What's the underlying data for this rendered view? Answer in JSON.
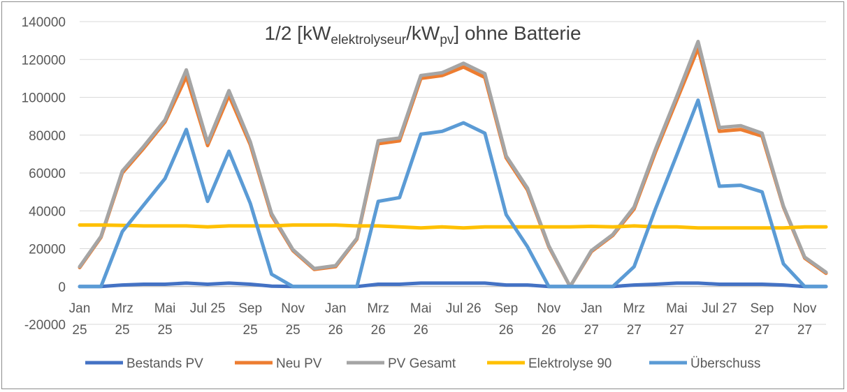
{
  "chart_data": {
    "type": "line",
    "title": {
      "prefix": "1/2 [kW",
      "sub1": "elektrolyseur",
      "mid": "/kW",
      "sub2": "pv",
      "suffix": "]  ohne Batterie"
    },
    "ylim": [
      -20000,
      140000
    ],
    "yticks": [
      -20000,
      0,
      20000,
      40000,
      60000,
      80000,
      100000,
      120000,
      140000
    ],
    "ytick_labels": [
      "-20000",
      "0",
      "20000",
      "40000",
      "60000",
      "80000",
      "100000",
      "120000",
      "140000"
    ],
    "grid": true,
    "legend_position": "bottom",
    "x": [
      "Jan 25",
      "Feb 25",
      "Mrz 25",
      "Apr 25",
      "Mai 25",
      "Jun 25",
      "Jul 25",
      "Aug 25",
      "Sep 25",
      "Okt 25",
      "Nov 25",
      "Dez 25",
      "Jan 26",
      "Feb 26",
      "Mrz 26",
      "Apr 26",
      "Mai 26",
      "Jun 26",
      "Jul 26",
      "Aug 26",
      "Sep 26",
      "Okt 26",
      "Nov 26",
      "Dez 26",
      "Jan 27",
      "Feb 27",
      "Mrz 27",
      "Apr 27",
      "Mai 27",
      "Jun 27",
      "Jul 27",
      "Aug 27",
      "Sep 27",
      "Okt 27",
      "Nov 27",
      "Dez 27"
    ],
    "xtick_labels": [
      {
        "index": 0,
        "line1": "Jan",
        "line2": "25"
      },
      {
        "index": 2,
        "line1": "Mrz",
        "line2": "25"
      },
      {
        "index": 4,
        "line1": "Mai",
        "line2": "25"
      },
      {
        "index": 6,
        "line1": "Jul 25",
        "line2": ""
      },
      {
        "index": 8,
        "line1": "Sep",
        "line2": "25"
      },
      {
        "index": 10,
        "line1": "Nov",
        "line2": "25"
      },
      {
        "index": 12,
        "line1": "Jan",
        "line2": "26"
      },
      {
        "index": 14,
        "line1": "Mrz",
        "line2": "26"
      },
      {
        "index": 16,
        "line1": "Mai",
        "line2": "26"
      },
      {
        "index": 18,
        "line1": "Jul 26",
        "line2": ""
      },
      {
        "index": 20,
        "line1": "Sep",
        "line2": "26"
      },
      {
        "index": 22,
        "line1": "Nov",
        "line2": "26"
      },
      {
        "index": 24,
        "line1": "Jan",
        "line2": "27"
      },
      {
        "index": 26,
        "line1": "Mrz",
        "line2": "27"
      },
      {
        "index": 28,
        "line1": "Mai",
        "line2": "27"
      },
      {
        "index": 30,
        "line1": "Jul 27",
        "line2": ""
      },
      {
        "index": 32,
        "line1": "Sep",
        "line2": "27"
      },
      {
        "index": 34,
        "line1": "Nov",
        "line2": "27"
      }
    ],
    "series": [
      {
        "name": "Bestands PV",
        "color": "#4472C4",
        "values": [
          0,
          0,
          800,
          1200,
          1200,
          1800,
          1200,
          1800,
          1200,
          200,
          0,
          0,
          0,
          0,
          1200,
          1200,
          1800,
          1800,
          1800,
          1800,
          800,
          800,
          0,
          0,
          0,
          0,
          800,
          1200,
          1800,
          1800,
          1200,
          1200,
          1200,
          800,
          0,
          0
        ]
      },
      {
        "name": "Neu PV",
        "color": "#ED7D31",
        "values": [
          10000,
          26000,
          60000,
          73000,
          87000,
          111000,
          74500,
          101000,
          75000,
          37500,
          19000,
          9000,
          10500,
          25000,
          75500,
          77000,
          110000,
          111500,
          116000,
          110500,
          68000,
          51000,
          21000,
          0,
          18500,
          27000,
          41000,
          71000,
          98500,
          126000,
          82000,
          83000,
          79500,
          42000,
          15000,
          7000
        ]
      },
      {
        "name": "PV Gesamt",
        "color": "#A5A5A5",
        "values": [
          10500,
          26500,
          61000,
          74000,
          88000,
          114500,
          76000,
          103500,
          76500,
          38500,
          19500,
          9500,
          11000,
          25500,
          77000,
          78500,
          111500,
          113000,
          118000,
          112500,
          69000,
          52000,
          21500,
          0,
          19000,
          27500,
          42000,
          72500,
          100500,
          129500,
          84000,
          85000,
          81000,
          42500,
          15500,
          7500
        ]
      },
      {
        "name": "Elektrolyse 90",
        "color": "#FFC000",
        "values": [
          32500,
          32500,
          32300,
          32000,
          32000,
          32000,
          31500,
          32000,
          32000,
          32000,
          32500,
          32500,
          32500,
          32000,
          32000,
          31500,
          31000,
          31500,
          31000,
          31500,
          31500,
          31500,
          31500,
          31500,
          31800,
          31500,
          32000,
          31500,
          31500,
          31000,
          31000,
          31000,
          31000,
          31000,
          31500,
          31500
        ]
      },
      {
        "name": "Überschuss",
        "color": "#5B9BD5",
        "values": [
          0,
          0,
          29000,
          43000,
          57000,
          83000,
          45000,
          71500,
          44000,
          6500,
          0,
          0,
          0,
          0,
          45000,
          47000,
          80500,
          82000,
          86500,
          81000,
          38000,
          21000,
          0,
          0,
          0,
          0,
          10500,
          41000,
          69500,
          98500,
          53000,
          53500,
          50000,
          12000,
          0,
          0
        ]
      }
    ]
  }
}
